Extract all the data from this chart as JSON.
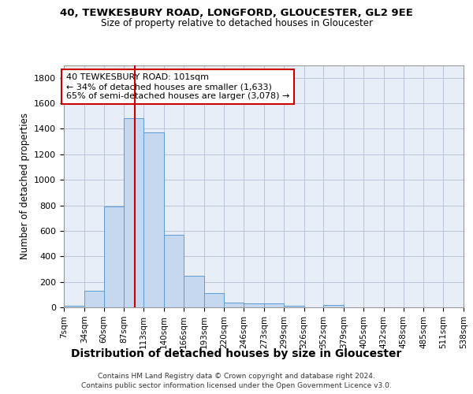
{
  "title1": "40, TEWKESBURY ROAD, LONGFORD, GLOUCESTER, GL2 9EE",
  "title2": "Size of property relative to detached houses in Gloucester",
  "xlabel": "Distribution of detached houses by size in Gloucester",
  "ylabel": "Number of detached properties",
  "bin_edges": [
    7,
    34,
    60,
    87,
    113,
    140,
    166,
    193,
    220,
    246,
    273,
    299,
    326,
    352,
    379,
    405,
    432,
    458,
    485,
    511,
    538
  ],
  "bar_heights": [
    10,
    130,
    790,
    1480,
    1370,
    570,
    250,
    110,
    35,
    30,
    30,
    15,
    0,
    20,
    0,
    0,
    0,
    0,
    0,
    0
  ],
  "bar_color": "#c5d8f0",
  "bar_edgecolor": "#5b9bd5",
  "background_color": "#e8eef8",
  "grid_color": "#b8c4d8",
  "red_line_x": 101,
  "red_line_color": "#cc0000",
  "annotation_line1": "40 TEWKESBURY ROAD: 101sqm",
  "annotation_line2": "← 34% of detached houses are smaller (1,633)",
  "annotation_line3": "65% of semi-detached houses are larger (3,078) →",
  "annotation_box_edgecolor": "#cc0000",
  "annotation_box_facecolor": "#ffffff",
  "ylim": [
    0,
    1900
  ],
  "yticks": [
    0,
    200,
    400,
    600,
    800,
    1000,
    1200,
    1400,
    1600,
    1800
  ],
  "footer_line1": "Contains HM Land Registry data © Crown copyright and database right 2024.",
  "footer_line2": "Contains public sector information licensed under the Open Government Licence v3.0.",
  "tick_labels": [
    "7sqm",
    "34sqm",
    "60sqm",
    "87sqm",
    "113sqm",
    "140sqm",
    "166sqm",
    "193sqm",
    "220sqm",
    "246sqm",
    "273sqm",
    "299sqm",
    "326sqm",
    "352sqm",
    "379sqm",
    "405sqm",
    "432sqm",
    "458sqm",
    "485sqm",
    "511sqm",
    "538sqm"
  ]
}
